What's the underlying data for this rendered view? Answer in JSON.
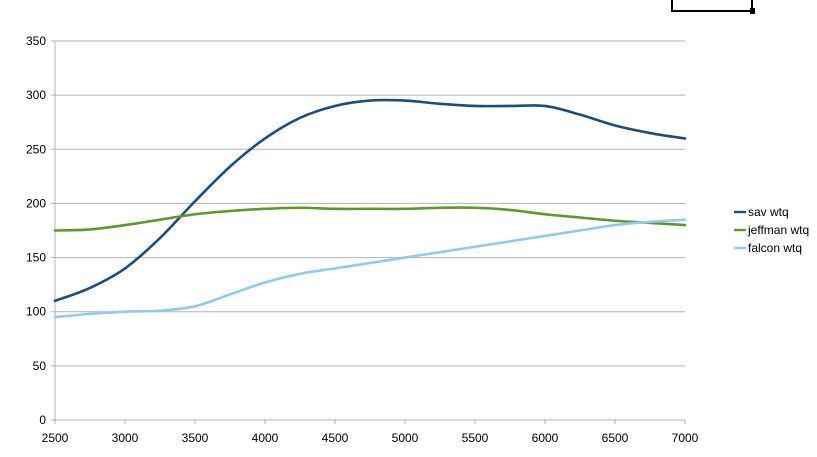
{
  "chart_data": {
    "type": "line",
    "title": "",
    "xlabel": "",
    "ylabel": "",
    "xlim": [
      2500,
      7000
    ],
    "ylim": [
      0,
      350
    ],
    "x_ticks": [
      2500,
      3000,
      3500,
      4000,
      4500,
      5000,
      5500,
      6000,
      6500,
      7000
    ],
    "y_ticks": [
      0,
      50,
      100,
      150,
      200,
      250,
      300,
      350
    ],
    "grid": "horizontal",
    "legend_position": "right",
    "x": [
      2500,
      2750,
      3000,
      3250,
      3500,
      3750,
      4000,
      4250,
      4500,
      4750,
      5000,
      5250,
      5500,
      5750,
      6000,
      6250,
      6500,
      6750,
      7000
    ],
    "series": [
      {
        "name": "sav wtq",
        "color": "#1a4e80",
        "values": [
          110,
          122,
          140,
          168,
          202,
          234,
          260,
          279,
          290,
          295,
          295,
          292,
          290,
          290,
          290,
          282,
          272,
          265,
          260
        ]
      },
      {
        "name": "jeffman wtq",
        "color": "#5a9a28",
        "values": [
          175,
          176,
          180,
          185,
          190,
          193,
          195,
          196,
          195,
          195,
          195,
          196,
          196,
          194,
          190,
          187,
          184,
          182,
          180
        ]
      },
      {
        "name": "falcon wtq",
        "color": "#8ecbee",
        "values": [
          95,
          98,
          100,
          101,
          105,
          116,
          127,
          135,
          140,
          145,
          150,
          155,
          160,
          165,
          170,
          175,
          180,
          183,
          185
        ]
      }
    ]
  }
}
